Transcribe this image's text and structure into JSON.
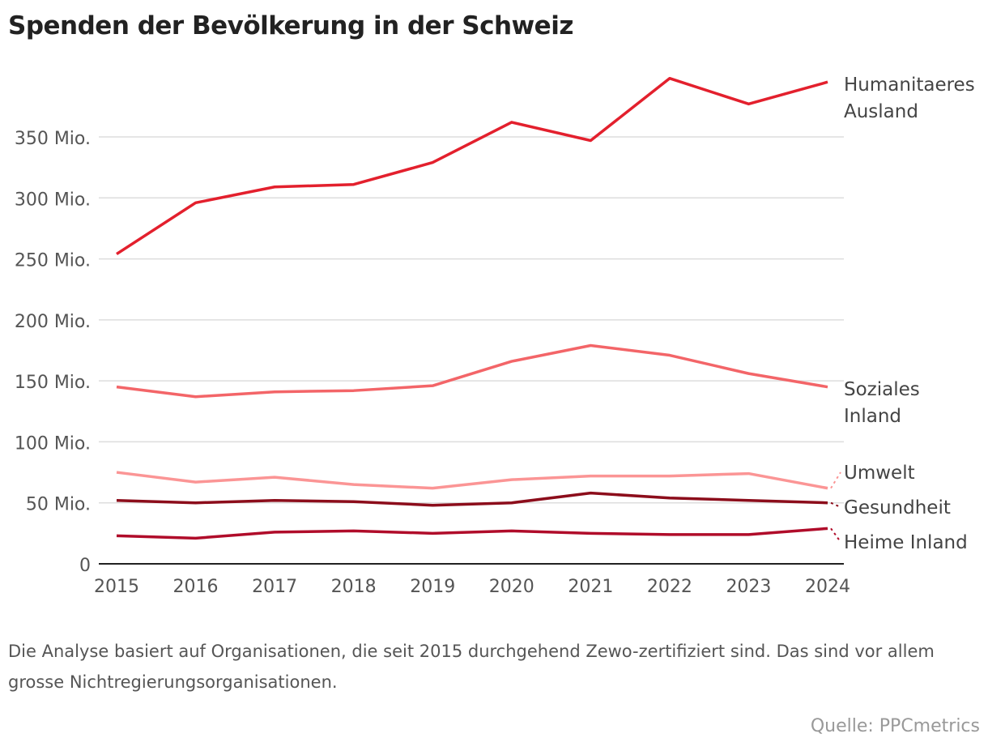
{
  "title": "Spenden der Bevölkerung in der Schweiz",
  "note": "Die Analyse basiert auf Organisationen, die seit 2015 durchgehend Zewo-zertifiziert sind. Das sind vor allem grosse Nichtregierungsorganisationen.",
  "source": "Quelle: PPCmetrics",
  "chart_data": {
    "type": "line",
    "title": "Spenden der Bevölkerung in der Schweiz",
    "x": [
      2015,
      2016,
      2017,
      2018,
      2019,
      2020,
      2021,
      2022,
      2023,
      2024
    ],
    "x_tick_labels": [
      "2015",
      "2016",
      "2017",
      "2018",
      "2019",
      "2020",
      "2021",
      "2022",
      "2023",
      "2024"
    ],
    "ylim": [
      0,
      400
    ],
    "y_ticks": [
      0,
      50,
      100,
      150,
      200,
      250,
      300,
      350
    ],
    "y_tick_labels": [
      "0",
      "50 Mio.",
      "100 Mio.",
      "150 Mio.",
      "200 Mio.",
      "250 Mio.",
      "300 Mio.",
      "350 Mio."
    ],
    "grid": true,
    "legend": "direct labels at right",
    "series": [
      {
        "name": "Humanitaeres Ausland",
        "label_lines": [
          "Humanitaeres",
          "Ausland"
        ],
        "color": "#e3202d",
        "values": [
          254,
          296,
          309,
          311,
          329,
          362,
          347,
          398,
          377,
          395
        ]
      },
      {
        "name": "Soziales Inland",
        "label_lines": [
          "Soziales",
          "Inland"
        ],
        "color": "#f36568",
        "values": [
          145,
          137,
          141,
          142,
          146,
          166,
          179,
          171,
          156,
          145
        ]
      },
      {
        "name": "Umwelt",
        "label_lines": [
          "Umwelt"
        ],
        "color": "#fb9595",
        "values": [
          75,
          67,
          71,
          65,
          62,
          69,
          72,
          72,
          74,
          62
        ]
      },
      {
        "name": "Gesundheit",
        "label_lines": [
          "Gesundheit"
        ],
        "color": "#8c0d1b",
        "values": [
          52,
          50,
          52,
          51,
          48,
          50,
          58,
          54,
          52,
          50
        ]
      },
      {
        "name": "Heime Inland",
        "label_lines": [
          "Heime Inland"
        ],
        "color": "#b00c2a",
        "values": [
          23,
          21,
          26,
          27,
          25,
          27,
          25,
          24,
          24,
          29
        ]
      }
    ]
  }
}
